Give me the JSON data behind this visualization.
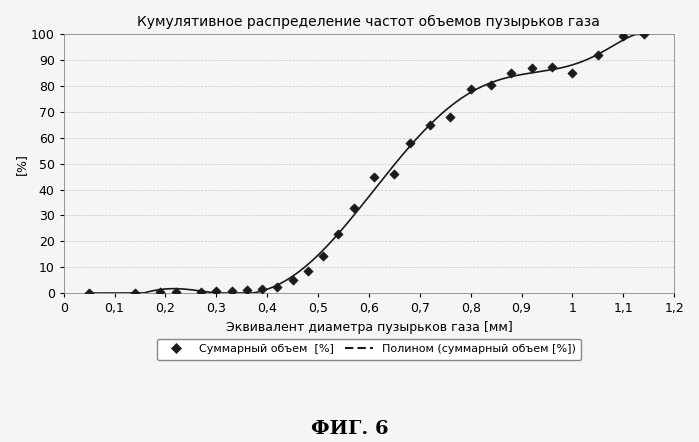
{
  "title": "Кумулятивное распределение частот объемов пузырьков газа",
  "xlabel": "Эквивалент диаметра пузырьков газа [мм]",
  "ylabel": "[%]",
  "fig_label": "ФИГ. 6",
  "legend_scatter": "Суммарный объем  [%]",
  "legend_line": "Полином (суммарный объем [%])",
  "xlim": [
    0.0,
    1.2
  ],
  "ylim": [
    0,
    100
  ],
  "xticks": [
    0.0,
    0.1,
    0.2,
    0.3,
    0.4,
    0.5,
    0.6,
    0.7,
    0.8,
    0.9,
    1.0,
    1.1,
    1.2
  ],
  "yticks": [
    0,
    10,
    20,
    30,
    40,
    50,
    60,
    70,
    80,
    90,
    100
  ],
  "scatter_x": [
    0.05,
    0.14,
    0.19,
    0.22,
    0.27,
    0.3,
    0.33,
    0.36,
    0.39,
    0.42,
    0.45,
    0.48,
    0.51,
    0.54,
    0.57,
    0.61,
    0.65,
    0.68,
    0.72,
    0.76,
    0.8,
    0.84,
    0.88,
    0.92,
    0.96,
    1.0,
    1.05,
    1.1,
    1.14
  ],
  "scatter_y": [
    0.1,
    0.2,
    0.3,
    0.4,
    0.5,
    0.7,
    0.9,
    1.2,
    1.5,
    2.5,
    5.0,
    8.5,
    14.5,
    23.0,
    33.0,
    45.0,
    46.0,
    58.0,
    65.0,
    68.0,
    79.0,
    80.5,
    85.0,
    87.0,
    87.5,
    85.0,
    92.0,
    99.5,
    100.0
  ],
  "background_color": "#f5f5f5",
  "grid_color": "#c8c8c8",
  "scatter_color": "#1a1a1a",
  "line_color": "#1a1a1a",
  "title_fontsize": 10,
  "axis_label_fontsize": 9,
  "tick_fontsize": 9,
  "legend_fontsize": 8
}
